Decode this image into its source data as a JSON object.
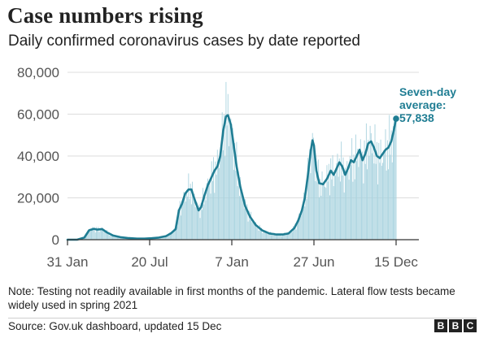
{
  "title": "Case numbers rising",
  "subtitle": "Daily confirmed coronavirus cases by date reported",
  "note": "Note: Testing not readily available in first months of the pandemic. Lateral flow tests became widely used in spring 2021",
  "source": "Source: Gov.uk dashboard, updated 15 Dec",
  "logo": [
    "B",
    "B",
    "C"
  ],
  "colors": {
    "line": "#1f7d93",
    "bars": "#a9d3df",
    "axis": "#333333",
    "grid": "#dddddd",
    "text": "#222222",
    "tick": "#555555"
  },
  "annotation": {
    "line1": "Seven-day",
    "line2": "average:",
    "value": "57,838"
  },
  "chart_data": {
    "type": "bar",
    "title": "Daily confirmed coronavirus cases by date reported",
    "xlabel": "",
    "ylabel": "",
    "x_start_day": 0,
    "x_end_day": 684,
    "ylim": [
      0,
      80000
    ],
    "grid": true,
    "y_ticks": [
      {
        "value": 0,
        "label": "0"
      },
      {
        "value": 20000,
        "label": "20,000"
      },
      {
        "value": 40000,
        "label": "40,000"
      },
      {
        "value": 60000,
        "label": "60,000"
      },
      {
        "value": 80000,
        "label": "80,000"
      }
    ],
    "x_ticks": [
      {
        "day": 0,
        "label": "31 Jan"
      },
      {
        "day": 171,
        "label": "20 Jul"
      },
      {
        "day": 342,
        "label": "7 Jan"
      },
      {
        "day": 513,
        "label": "27 Jun"
      },
      {
        "day": 684,
        "label": "15 Dec"
      }
    ],
    "series": [
      {
        "name": "Seven-day average",
        "points": [
          [
            0,
            0
          ],
          [
            20,
            0
          ],
          [
            35,
            1000
          ],
          [
            45,
            4500
          ],
          [
            55,
            5200
          ],
          [
            62,
            4800
          ],
          [
            72,
            5100
          ],
          [
            82,
            3500
          ],
          [
            95,
            2000
          ],
          [
            110,
            1200
          ],
          [
            125,
            800
          ],
          [
            145,
            500
          ],
          [
            160,
            500
          ],
          [
            175,
            700
          ],
          [
            190,
            1000
          ],
          [
            205,
            1700
          ],
          [
            215,
            3000
          ],
          [
            225,
            5000
          ],
          [
            232,
            14000
          ],
          [
            238,
            17000
          ],
          [
            245,
            22000
          ],
          [
            252,
            24000
          ],
          [
            258,
            24000
          ],
          [
            262,
            21000
          ],
          [
            268,
            17000
          ],
          [
            273,
            14000
          ],
          [
            278,
            15500
          ],
          [
            285,
            21000
          ],
          [
            292,
            26000
          ],
          [
            300,
            30000
          ],
          [
            306,
            33000
          ],
          [
            312,
            35000
          ],
          [
            318,
            40000
          ],
          [
            324,
            52000
          ],
          [
            330,
            59000
          ],
          [
            334,
            59500
          ],
          [
            340,
            55000
          ],
          [
            346,
            45000
          ],
          [
            352,
            35000
          ],
          [
            360,
            25000
          ],
          [
            370,
            16000
          ],
          [
            380,
            11000
          ],
          [
            392,
            7000
          ],
          [
            405,
            4500
          ],
          [
            420,
            3000
          ],
          [
            435,
            2500
          ],
          [
            448,
            2500
          ],
          [
            460,
            3000
          ],
          [
            472,
            5500
          ],
          [
            480,
            9000
          ],
          [
            488,
            14000
          ],
          [
            494,
            20000
          ],
          [
            500,
            30000
          ],
          [
            506,
            42000
          ],
          [
            510,
            47500
          ],
          [
            513,
            45000
          ],
          [
            518,
            33000
          ],
          [
            524,
            27000
          ],
          [
            532,
            26500
          ],
          [
            540,
            29000
          ],
          [
            548,
            33000
          ],
          [
            554,
            31000
          ],
          [
            560,
            34000
          ],
          [
            566,
            37000
          ],
          [
            572,
            35000
          ],
          [
            578,
            31000
          ],
          [
            584,
            34000
          ],
          [
            590,
            38000
          ],
          [
            596,
            37000
          ],
          [
            602,
            40000
          ],
          [
            608,
            43000
          ],
          [
            614,
            38000
          ],
          [
            620,
            41000
          ],
          [
            626,
            46000
          ],
          [
            632,
            47000
          ],
          [
            638,
            44000
          ],
          [
            644,
            40000
          ],
          [
            650,
            39000
          ],
          [
            656,
            41000
          ],
          [
            662,
            43000
          ],
          [
            668,
            44000
          ],
          [
            674,
            47000
          ],
          [
            678,
            51000
          ],
          [
            684,
            57838
          ]
        ]
      }
    ]
  }
}
